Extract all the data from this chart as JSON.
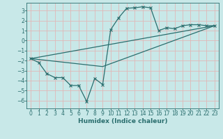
{
  "title": "",
  "xlabel": "Humidex (Indice chaleur)",
  "ylabel": "",
  "background_color": "#c8e8e8",
  "grid_color": "#e0b8b8",
  "line_color": "#2a6e6e",
  "xlim": [
    -0.5,
    23.5
  ],
  "ylim": [
    -6.8,
    3.8
  ],
  "yticks": [
    -6,
    -5,
    -4,
    -3,
    -2,
    -1,
    0,
    1,
    2,
    3
  ],
  "xticks": [
    0,
    1,
    2,
    3,
    4,
    5,
    6,
    7,
    8,
    9,
    10,
    11,
    12,
    13,
    14,
    15,
    16,
    17,
    18,
    19,
    20,
    21,
    22,
    23
  ],
  "series1_x": [
    0,
    1,
    2,
    3,
    4,
    5,
    6,
    7,
    8,
    9,
    10,
    11,
    12,
    13,
    14,
    15,
    16,
    17,
    18,
    19,
    20,
    21,
    22,
    23
  ],
  "series1_y": [
    -1.8,
    -2.2,
    -3.3,
    -3.7,
    -3.7,
    -4.5,
    -4.5,
    -6.1,
    -3.8,
    -4.4,
    1.1,
    2.3,
    3.25,
    3.3,
    3.4,
    3.3,
    1.0,
    1.3,
    1.2,
    1.5,
    1.6,
    1.6,
    1.5,
    1.5
  ],
  "series2_x": [
    0,
    23
  ],
  "series2_y": [
    -1.8,
    1.5
  ],
  "series3_x": [
    0,
    9,
    23
  ],
  "series3_y": [
    -1.8,
    -2.6,
    1.5
  ],
  "xlabel_fontsize": 6.5,
  "tick_fontsize": 5.5
}
